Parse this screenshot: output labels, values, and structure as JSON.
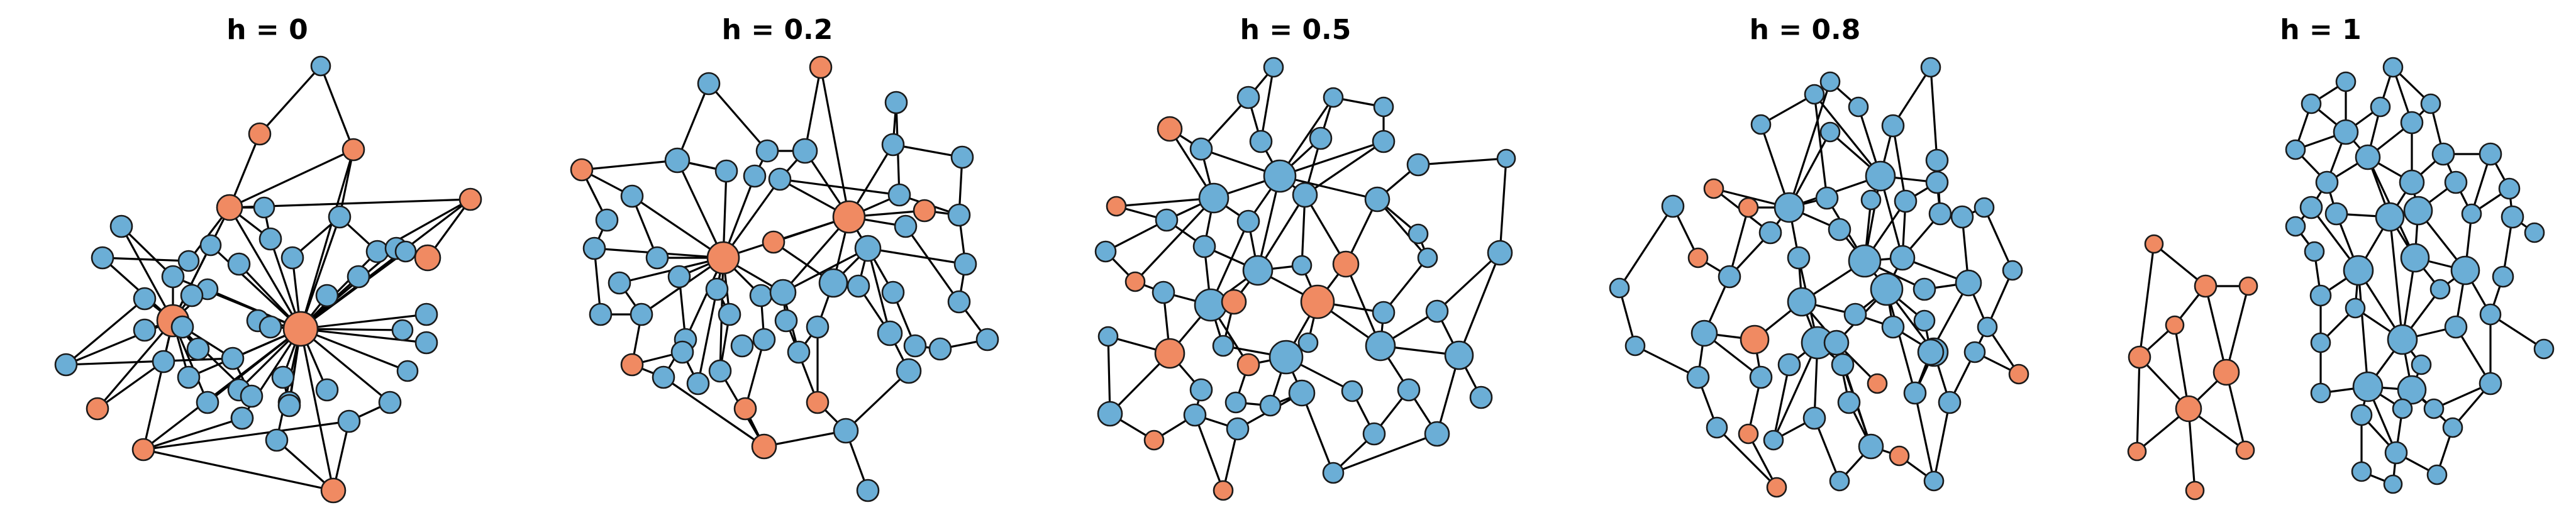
{
  "figure": {
    "colors": {
      "majority": "#6baed6",
      "minority": "#f08a62",
      "edge": "#000000",
      "outline": "#1a1a1a"
    },
    "panels": [
      {
        "title": "h = 0"
      },
      {
        "title": "h = 0.2"
      },
      {
        "title": "h = 0.5"
      },
      {
        "title": "h = 0.8"
      },
      {
        "title": "h = 1"
      }
    ]
  }
}
